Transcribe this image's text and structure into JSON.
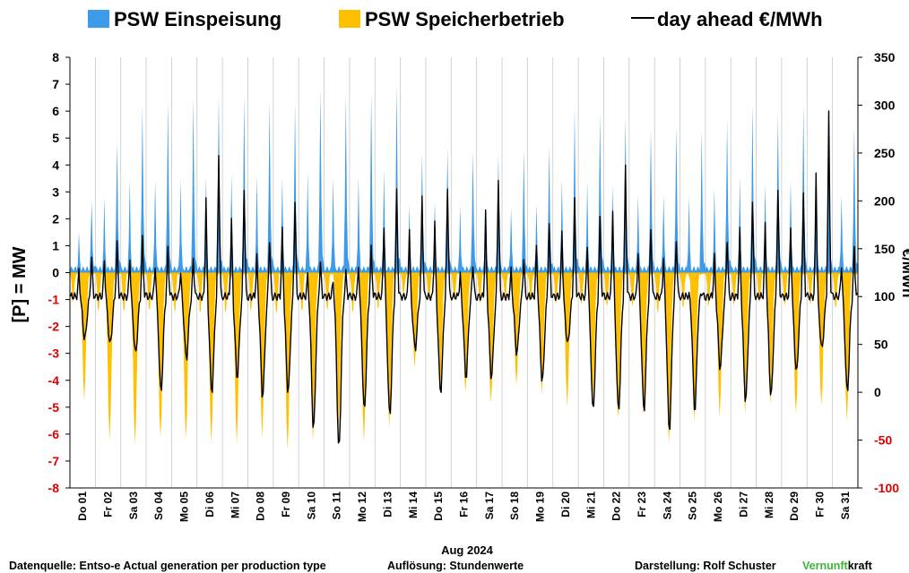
{
  "chart_data": {
    "type": "area",
    "legend": [
      {
        "name": "PSW Einspeisung",
        "color": "#3d9be9"
      },
      {
        "name": "PSW Speicherbetrieb",
        "color": "#ffc000"
      },
      {
        "name": "day ahead €/MWh",
        "color": "#000000"
      }
    ],
    "legend_position": "top",
    "ylabel": "[P] = MW",
    "y2label": "€/MWh",
    "xlabel": "Aug 2024",
    "ylim": [
      -8,
      8
    ],
    "y2lim": [
      -100,
      350
    ],
    "yticks": [
      "8",
      "7",
      "6",
      "5",
      "4",
      "3",
      "2",
      "1",
      "0",
      "-1",
      "-2",
      "-3",
      "-4",
      "-5",
      "-6",
      "-7",
      "-8"
    ],
    "y2ticks": [
      "350",
      "300",
      "250",
      "200",
      "150",
      "100",
      "50",
      "0",
      "-50",
      "-100"
    ],
    "x_categories": [
      "Do 01",
      "Fr 02",
      "Sa 03",
      "So 04",
      "Mo 05",
      "Di 06",
      "Mi 07",
      "Do 08",
      "Fr 09",
      "Sa 10",
      "So 11",
      "Mo 12",
      "Di 13",
      "Mi 14",
      "Do 15",
      "Fr 16",
      "Sa 17",
      "So 18",
      "Mo 19",
      "Di 20",
      "Mi 21",
      "Do 22",
      "Fr 23",
      "Sa 24",
      "So 25",
      "Mo 26",
      "Di 27",
      "Mi 28",
      "Do 29",
      "Fr 30",
      "Sa 31"
    ],
    "grid": "vertical-daily",
    "daily_peaks": {
      "einspeisung_gw_peak": [
        2.6,
        4.9,
        6.3,
        6.4,
        6.5,
        6.5,
        6.5,
        6.4,
        6.4,
        6.9,
        6.6,
        6.6,
        6.9,
        4.4,
        4.7,
        4.6,
        4.4,
        4.5,
        4.6,
        6.1,
        6.0,
        5.9,
        5.4,
        5.4,
        5.2,
        5.6,
        6.3,
        6.0,
        6.3,
        6.1,
        5.3
      ],
      "speicher_gw_trough": [
        -4.7,
        -6.2,
        -6.4,
        -6.2,
        -6.2,
        -6.3,
        -6.3,
        -6.1,
        -6.6,
        -6.3,
        -5.9,
        -6.3,
        -5.7,
        -3.5,
        -4.5,
        -4.5,
        -4.9,
        -4.2,
        -4.5,
        -4.9,
        -5.1,
        -5.5,
        -5.4,
        -6.4,
        -5.5,
        -5.3,
        -5.2,
        -4.9,
        -5.3,
        -5.0,
        -5.5
      ],
      "price_max_eur": [
        140,
        155,
        160,
        150,
        140,
        250,
        215,
        160,
        200,
        135,
        125,
        150,
        210,
        205,
        215,
        135,
        225,
        140,
        175,
        200,
        180,
        235,
        170,
        160,
        105,
        160,
        200,
        210,
        205,
        290,
        150
      ],
      "price_min_eur": [
        55,
        50,
        40,
        0,
        35,
        0,
        15,
        -5,
        0,
        -40,
        -60,
        -20,
        -25,
        45,
        0,
        15,
        15,
        40,
        10,
        50,
        -20,
        -20,
        -20,
        -40,
        -20,
        25,
        -10,
        -5,
        20,
        45,
        0
      ]
    }
  },
  "footer": {
    "source": "Datenquelle: Entso-e  Actual generation per production type",
    "resolution": "Auflösung: Stundenwerte",
    "author": "Darstellung:  Rolf Schuster",
    "brand_green": "Vernunft",
    "brand_black": "kraft"
  }
}
